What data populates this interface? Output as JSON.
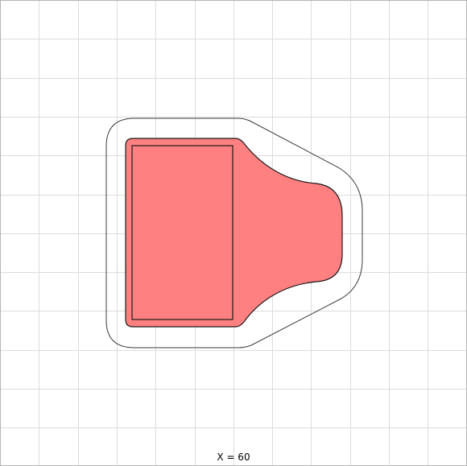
{
  "readout": {
    "label": "X = 60"
  },
  "colors": {
    "background": "#ffffff",
    "grid": "#dcdcdc",
    "frame": "#b4b4b4",
    "outer_outline": "#3c3c3c",
    "shape_fill": "#ff8080",
    "shape_stroke": "#1a1a1a"
  }
}
